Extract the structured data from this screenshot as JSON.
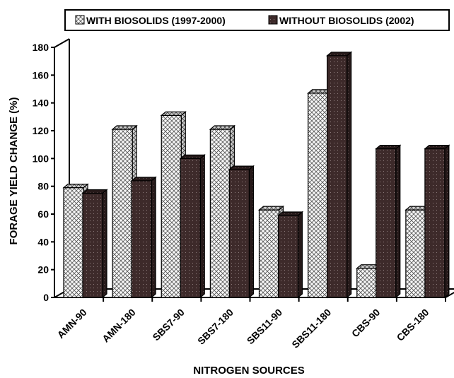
{
  "chart_data": {
    "type": "bar",
    "style": "3d-clustered",
    "title": "",
    "xlabel": "NITROGEN SOURCES",
    "ylabel": "FORAGE YIELD CHANGE (%)",
    "ylim": [
      0,
      180
    ],
    "yticks": [
      0,
      20,
      40,
      60,
      80,
      100,
      120,
      140,
      160,
      180
    ],
    "grid": false,
    "legend_position": "top",
    "categories": [
      "AMN-90",
      "AMN-180",
      "SBS7-90",
      "SBS7-180",
      "SBS11-90",
      "SBS11-180",
      "CBS-90",
      "CBS-180"
    ],
    "series": [
      {
        "name": "WITH BIOSOLIDS (1997-2000)",
        "values": [
          79,
          121,
          131,
          121,
          63,
          147,
          21,
          63
        ],
        "color": "#f4f4f4",
        "pattern": "crosshatch"
      },
      {
        "name": "WITHOUT BIOSOLIDS (2002)",
        "values": [
          75,
          84,
          100,
          92,
          59,
          174,
          107,
          107
        ],
        "color": "#3a2b2b",
        "pattern": "dots"
      }
    ]
  }
}
